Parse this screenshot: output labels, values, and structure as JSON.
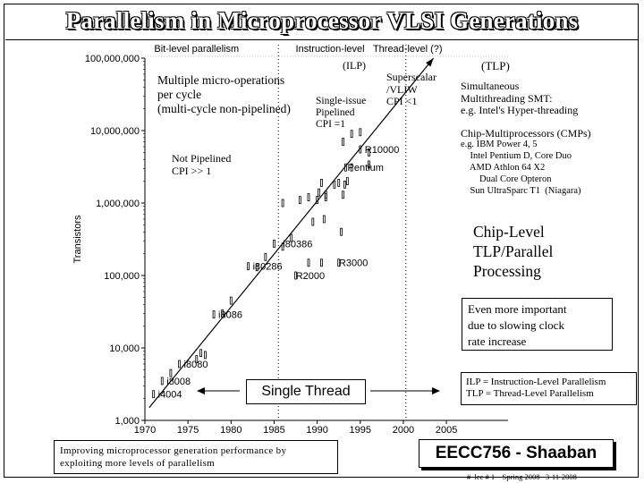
{
  "header": {
    "title": "Parallelism in Microprocessor VLSI Generations"
  },
  "chart_data": {
    "type": "scatter",
    "title": "",
    "xlabel": "",
    "ylabel": "Transistors",
    "xlim": [
      1970,
      2008
    ],
    "ylim": [
      1000,
      100000000
    ],
    "yscale": "log",
    "x_ticks": [
      1970,
      1975,
      1980,
      1985,
      1990,
      1995,
      2000,
      2005
    ],
    "y_ticks": [
      {
        "value": 1000,
        "label": "1,000"
      },
      {
        "value": 10000,
        "label": "10,000"
      },
      {
        "value": 100000,
        "label": "100,000"
      },
      {
        "value": 1000000,
        "label": "1,000,000"
      },
      {
        "value": 10000000,
        "label": "10,000,000"
      },
      {
        "value": 100000000,
        "label": "100,000,000"
      }
    ],
    "eras": [
      {
        "label": "Bit-level parallelism",
        "x": 1976
      },
      {
        "label": "Instruction-level",
        "x": 1991.5
      },
      {
        "label": "Thread-level (?)",
        "x": 2000.5
      }
    ],
    "era_dividers": [
      1985.5,
      2000.3
    ],
    "trend_line": [
      [
        1970.5,
        1500
      ],
      [
        2003.5,
        100000000
      ]
    ],
    "points": [
      [
        1971,
        2300
      ],
      [
        1972,
        3500
      ],
      [
        1973,
        4500
      ],
      [
        1974,
        6000
      ],
      [
        1976,
        7000
      ],
      [
        1976.5,
        8500
      ],
      [
        1977,
        8000
      ],
      [
        1978,
        29000
      ],
      [
        1979,
        30000
      ],
      [
        1980,
        45000
      ],
      [
        1982,
        134000
      ],
      [
        1983,
        130000
      ],
      [
        1984,
        180000
      ],
      [
        1985,
        275000
      ],
      [
        1986,
        250000
      ],
      [
        1987,
        330000
      ],
      [
        1988,
        1100000
      ],
      [
        1989,
        1200000
      ],
      [
        1989.5,
        550000
      ],
      [
        1990,
        1100000
      ],
      [
        1990.2,
        1400000
      ],
      [
        1990.5,
        1900000
      ],
      [
        1991,
        1200000
      ],
      [
        1991,
        1300000
      ],
      [
        1992,
        1800000
      ],
      [
        1992.5,
        1900000
      ],
      [
        1993,
        1300000
      ],
      [
        1993.2,
        1800000
      ],
      [
        1993.3,
        3100000
      ],
      [
        1993.5,
        2000000
      ],
      [
        1994,
        3100000
      ],
      [
        1995,
        5500000
      ],
      [
        1996,
        3400000
      ],
      [
        1996,
        5000000
      ],
      [
        1987.5,
        100000
      ],
      [
        1989,
        150000
      ],
      [
        1990.5,
        150000
      ],
      [
        1992.5,
        150000
      ],
      [
        1986,
        1000000
      ],
      [
        1993,
        7000000
      ],
      [
        1994,
        9000000
      ],
      [
        1995,
        9500000
      ],
      [
        1990.8,
        600000
      ],
      [
        1992.8,
        400000
      ]
    ],
    "point_labels": [
      {
        "text": "i4004",
        "x": 1971,
        "y": 2300
      },
      {
        "text": "i8008",
        "x": 1972,
        "y": 3500
      },
      {
        "text": "i8080",
        "x": 1974,
        "y": 6000
      },
      {
        "text": "i8086",
        "x": 1978,
        "y": 29000
      },
      {
        "text": "i80286",
        "x": 1982,
        "y": 134000
      },
      {
        "text": "R2000",
        "x": 1987,
        "y": 100000
      },
      {
        "text": "i80386",
        "x": 1985.5,
        "y": 275000
      },
      {
        "text": "R3000",
        "x": 1992,
        "y": 150000
      },
      {
        "text": "Pentium",
        "x": 1993,
        "y": 3100000
      },
      {
        "text": "R10000",
        "x": 1995,
        "y": 5500000
      }
    ]
  },
  "annotations": {
    "ilp_tag": "(ILP)",
    "tlp_tag": "(TLP)",
    "micro_ops": "Multiple micro-operations\n per cycle\n(multi-cycle non-pipelined)",
    "single_issue": "Single-issue\nPipelined\nCPI =1",
    "superscalar": "Superscalar\n/VLIW\nCPI <1",
    "smt": "Simultaneous\nMultithreading SMT:\ne.g. Intel's Hyper-threading",
    "cmp": "Chip-Multiprocessors (CMPs)",
    "cmp_examples": "e.g. IBM Power 4, 5\n    Intel Pentium D, Core Duo\n    AMD Athlon 64 X2\n        Dual Core Opteron\n    Sun UltraSparc T1  (Niagara)",
    "not_pipelined": "Not Pipelined\nCPI >> 1",
    "chip_level": "Chip-Level\nTLP/Parallel\nProcessing",
    "important": "Even more important\ndue to slowing clock\nrate increase",
    "single_thread": "Single Thread",
    "legend_ilp_tlp": "ILP = Instruction-Level Parallelism\nTLP = Thread-Level Parallelism",
    "bottom_note": "Improving microprocessor generation performance by\nexploiting  more levels of parallelism",
    "course": "EECC756 - Shaaban",
    "footer": "#  lec # 1    Spring 2008   3-11-2008"
  }
}
